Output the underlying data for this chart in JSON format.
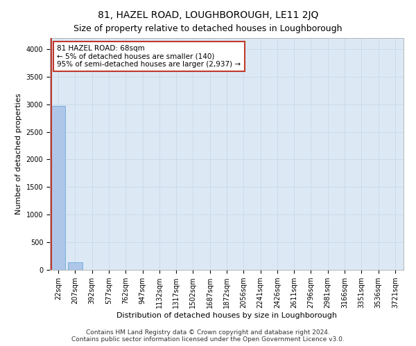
{
  "title": "81, HAZEL ROAD, LOUGHBOROUGH, LE11 2JQ",
  "subtitle": "Size of property relative to detached houses in Loughborough",
  "xlabel": "Distribution of detached houses by size in Loughborough",
  "ylabel": "Number of detached properties",
  "categories": [
    "22sqm",
    "207sqm",
    "392sqm",
    "577sqm",
    "762sqm",
    "947sqm",
    "1132sqm",
    "1317sqm",
    "1502sqm",
    "1687sqm",
    "1872sqm",
    "2056sqm",
    "2241sqm",
    "2426sqm",
    "2611sqm",
    "2796sqm",
    "2981sqm",
    "3166sqm",
    "3351sqm",
    "3536sqm",
    "3721sqm"
  ],
  "values": [
    2975,
    140,
    0,
    0,
    0,
    0,
    0,
    0,
    0,
    0,
    0,
    0,
    0,
    0,
    0,
    0,
    0,
    0,
    0,
    0,
    0
  ],
  "bar_color": "#aec6e8",
  "bar_edge_color": "#5a9fd4",
  "highlight_color": "#c0392b",
  "annotation_text_line1": "81 HAZEL ROAD: 68sqm",
  "annotation_text_line2": "← 5% of detached houses are smaller (140)",
  "annotation_text_line3": "95% of semi-detached houses are larger (2,937) →",
  "annotation_box_color": "#ffffff",
  "annotation_box_edge_color": "#c0392b",
  "ylim": [
    0,
    4200
  ],
  "yticks": [
    0,
    500,
    1000,
    1500,
    2000,
    2500,
    3000,
    3500,
    4000
  ],
  "grid_color": "#c8d8e8",
  "bg_color": "#dce9f5",
  "footer": "Contains HM Land Registry data © Crown copyright and database right 2024.\nContains public sector information licensed under the Open Government Licence v3.0.",
  "title_fontsize": 10,
  "subtitle_fontsize": 9,
  "axis_label_fontsize": 8,
  "tick_fontsize": 7,
  "annotation_fontsize": 7.5,
  "footer_fontsize": 6.5
}
